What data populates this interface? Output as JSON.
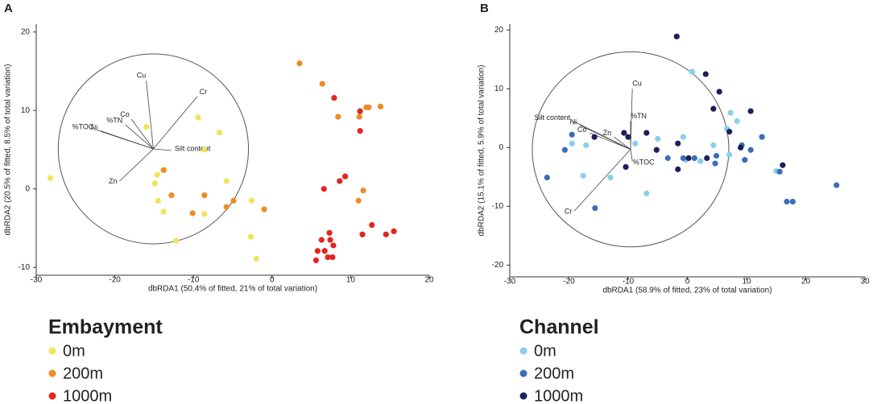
{
  "chart_data": [
    {
      "type": "scatter",
      "panel": "A",
      "legend_title": "Embayment",
      "x_label": "dbRDA1 (50.4% of fitted, 21% of total variation)",
      "y_label": "dbRDA2 (20.5% of fitted, 8.5% of total variation)",
      "xlim": [
        -30,
        20
      ],
      "ylim": [
        -11,
        21
      ],
      "xticks": [
        -30,
        -20,
        -10,
        0,
        10,
        20
      ],
      "yticks": [
        -10,
        0,
        10,
        20
      ],
      "circle": {
        "cx": -15.1,
        "cy": 5.1,
        "r": 12.1
      },
      "vectors": [
        {
          "name": "Cu",
          "x": -16.0,
          "y": 13.8
        },
        {
          "name": "Cr",
          "x": -9.5,
          "y": 11.8
        },
        {
          "name": "Co",
          "x": -17.9,
          "y": 8.9
        },
        {
          "name": "%TN",
          "x": -18.7,
          "y": 8.2
        },
        {
          "name": "%TOC",
          "x": -22.3,
          "y": 7.5
        },
        {
          "name": "Ni",
          "x": -21.8,
          "y": 7.4
        },
        {
          "name": "Silt content",
          "x": -12.8,
          "y": 4.9
        },
        {
          "name": "Zn",
          "x": -19.4,
          "y": 1.0
        }
      ],
      "series": [
        {
          "name": "0m",
          "color": "#f3e35b",
          "x": [
            -28.2,
            -16.0,
            -9.4,
            -6.7,
            -8.6,
            -14.6,
            -14.9,
            -14.5,
            -13.8,
            -12.2,
            -8.6,
            -5.8,
            -2.6,
            -2.7,
            -2.0
          ],
          "y": [
            1.4,
            7.9,
            9.1,
            7.2,
            5.0,
            1.8,
            0.7,
            -1.5,
            -2.9,
            -6.6,
            -3.2,
            1.0,
            -1.5,
            -6.1,
            -8.9
          ]
        },
        {
          "name": "200m",
          "color": "#ef8a25",
          "x": [
            3.5,
            6.4,
            8.4,
            12.0,
            12.3,
            13.8,
            11.1,
            -13.8,
            -12.8,
            -8.6,
            -10.1,
            -4.9,
            -5.8,
            -1.0,
            11.6,
            11.0
          ],
          "y": [
            16.0,
            13.4,
            9.2,
            10.4,
            10.4,
            10.5,
            9.2,
            2.4,
            -0.8,
            -0.8,
            -3.1,
            -1.5,
            -2.3,
            -2.6,
            -0.2,
            -1.5
          ]
        },
        {
          "name": "1000m",
          "color": "#e5241f",
          "x": [
            7.9,
            11.2,
            11.2,
            9.3,
            8.6,
            6.6,
            12.7,
            11.5,
            14.5,
            15.5,
            7.3,
            6.3,
            7.4,
            7.8,
            6.7,
            5.8,
            7.7,
            7.1,
            5.6
          ],
          "y": [
            11.6,
            9.9,
            7.4,
            1.6,
            1.0,
            0.0,
            -4.6,
            -5.8,
            -5.8,
            -5.4,
            -5.6,
            -6.5,
            -6.5,
            -7.2,
            -7.9,
            -7.9,
            -8.7,
            -8.7,
            -9.1
          ]
        }
      ]
    },
    {
      "type": "scatter",
      "panel": "B",
      "legend_title": "Channel",
      "x_label": "dbRDA1 (58.9% of fitted, 23% of total variation)",
      "y_label": "dbRDA2 (15.1% of fitted, 5.9% of total variation)",
      "xlim": [
        -30,
        30
      ],
      "ylim": [
        -22,
        21
      ],
      "xticks": [
        -30,
        -20,
        -10,
        0,
        10,
        20,
        30
      ],
      "yticks": [
        -20,
        -10,
        0,
        10,
        20
      ],
      "circle": {
        "cx": -9.6,
        "cy": -0.3,
        "r": 16.6
      },
      "vectors": [
        {
          "name": "Cu",
          "x": -9.3,
          "y": 10.0
        },
        {
          "name": "%TN",
          "x": -9.6,
          "y": 4.5
        },
        {
          "name": "Silt content",
          "x": -19.3,
          "y": 4.5
        },
        {
          "name": "Ni",
          "x": -18.2,
          "y": 3.8
        },
        {
          "name": "Co",
          "x": -16.5,
          "y": 2.5
        },
        {
          "name": "Zn",
          "x": -12.4,
          "y": 1.8
        },
        {
          "name": "%TOC",
          "x": -9.3,
          "y": -2.3
        },
        {
          "name": "Cr",
          "x": -19.1,
          "y": -10.8
        }
      ],
      "series": [
        {
          "name": "0m",
          "color": "#88d0ea",
          "x": [
            0.8,
            7.3,
            8.4,
            6.7,
            -0.7,
            -8.8,
            -5.0,
            -19.5,
            -17.1,
            -17.6,
            -13.0,
            -6.9,
            -0.3,
            2.2,
            7.1,
            15.0,
            4.4
          ],
          "y": [
            12.9,
            5.9,
            4.5,
            3.2,
            1.8,
            0.7,
            1.5,
            0.7,
            0.4,
            -4.8,
            -5.1,
            -7.8,
            -2.1,
            -2.3,
            -1.2,
            -4.0,
            0.4
          ]
        },
        {
          "name": "200m",
          "color": "#3a6fb6",
          "x": [
            -23.7,
            -20.7,
            -19.5,
            -15.6,
            -3.3,
            -0.7,
            1.2,
            4.9,
            4.7,
            9.2,
            10.7,
            9.7,
            12.6,
            15.6,
            16.8,
            17.8,
            25.2
          ],
          "y": [
            -5.1,
            -0.4,
            2.2,
            -10.3,
            -1.8,
            -1.8,
            -1.8,
            -1.4,
            -2.7,
            0.4,
            -0.4,
            -2.1,
            1.8,
            -4.1,
            -9.2,
            -9.2,
            -6.4
          ]
        },
        {
          "name": "1000m",
          "color": "#1c1f5b",
          "x": [
            -1.8,
            3.1,
            5.4,
            4.4,
            7.1,
            9.0,
            10.7,
            -6.9,
            -5.2,
            -1.6,
            -1.6,
            0.2,
            3.3,
            -10.4,
            -10.0,
            16.1,
            -15.7,
            -10.7
          ],
          "y": [
            18.9,
            12.5,
            9.5,
            6.6,
            2.7,
            0.0,
            6.2,
            2.5,
            -0.4,
            0.7,
            -3.7,
            -1.8,
            -1.8,
            -3.3,
            1.8,
            -3.0,
            1.8,
            2.5
          ]
        }
      ]
    }
  ]
}
